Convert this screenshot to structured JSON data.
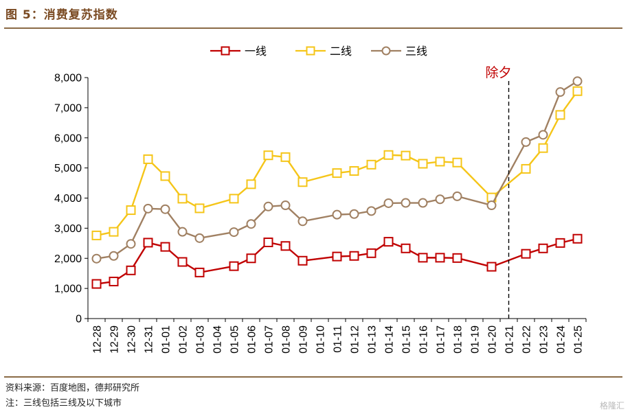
{
  "header": {
    "title": "图 5：消费复苏指数"
  },
  "footer": {
    "source": "资料来源：百度地图，德邦研究所",
    "note": "注：三线包括三线及以下城市"
  },
  "watermark": "格隆汇",
  "colors": {
    "tier1": "#c00000",
    "tier2": "#f5c518",
    "tier3": "#a08062",
    "accent_rule": "#8a6a45",
    "annotation": "#c00000"
  },
  "chart_data": {
    "type": "line",
    "title": "",
    "xlabel": "",
    "ylabel": "",
    "ylim": [
      0,
      8000
    ],
    "yticks": [
      0,
      1000,
      2000,
      3000,
      4000,
      5000,
      6000,
      7000,
      8000
    ],
    "ytick_labels": [
      "0",
      "1,000",
      "2,000",
      "3,000",
      "4,000",
      "5,000",
      "6,000",
      "7,000",
      "8,000"
    ],
    "legend_position": "top-center",
    "grid": false,
    "categories": [
      "12-28",
      "12-29",
      "12-30",
      "12-31",
      "01-01",
      "01-02",
      "01-03",
      "01-04",
      "01-05",
      "01-06",
      "01-07",
      "01-08",
      "01-09",
      "01-10",
      "01-11",
      "01-12",
      "01-13",
      "01-14",
      "01-15",
      "01-16",
      "01-17",
      "01-18",
      "01-19",
      "01-20",
      "01-21",
      "01-22",
      "01-23",
      "01-24",
      "01-25"
    ],
    "series": [
      {
        "name": "一线",
        "color": "#c00000",
        "marker": "square",
        "values": [
          1150,
          1230,
          1600,
          2520,
          2380,
          1880,
          1530,
          null,
          1740,
          2000,
          2530,
          2410,
          1920,
          null,
          2060,
          2080,
          2170,
          2550,
          2330,
          2020,
          2020,
          2010,
          null,
          1720,
          null,
          2150,
          2330,
          2510,
          2650
        ]
      },
      {
        "name": "二线",
        "color": "#f5c518",
        "marker": "square",
        "values": [
          2760,
          2880,
          3600,
          5290,
          4730,
          3980,
          3660,
          null,
          3980,
          4460,
          5420,
          5360,
          4530,
          null,
          4830,
          4900,
          5110,
          5430,
          5410,
          5140,
          5210,
          5180,
          null,
          4020,
          null,
          4970,
          5660,
          6760,
          7550
        ]
      },
      {
        "name": "三线",
        "color": "#a08062",
        "marker": "circle",
        "values": [
          1990,
          2080,
          2480,
          3650,
          3630,
          2880,
          2670,
          null,
          2870,
          3140,
          3720,
          3760,
          3230,
          null,
          3450,
          3470,
          3570,
          3830,
          3840,
          3840,
          3960,
          4060,
          null,
          3760,
          null,
          5860,
          6100,
          7520,
          7880
        ]
      }
    ],
    "annotations": [
      {
        "text": "除夕",
        "at_category": "01-21",
        "style": "dashed-vertical-line"
      }
    ]
  }
}
